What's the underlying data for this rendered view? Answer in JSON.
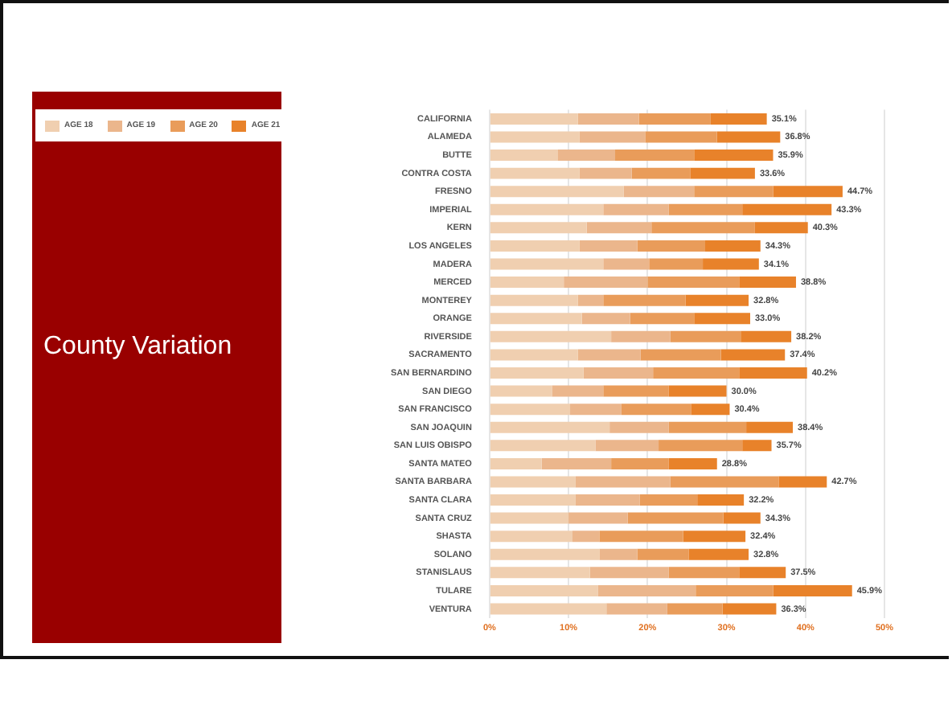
{
  "chart_data": {
    "type": "bar",
    "title": "County Variation",
    "orientation": "horizontal",
    "stacked": true,
    "categories": [
      "CALIFORNIA",
      "ALAMEDA",
      "BUTTE",
      "CONTRA COSTA",
      "FRESNO",
      "IMPERIAL",
      "KERN",
      "LOS ANGELES",
      "MADERA",
      "MERCED",
      "MONTEREY",
      "ORANGE",
      "RIVERSIDE",
      "SACRAMENTO",
      "SAN BERNARDINO",
      "SAN DIEGO",
      "SAN FRANCISCO",
      "SAN JOAQUIN",
      "SAN LUIS OBISPO",
      "SANTA MATEO",
      "SANTA BARBARA",
      "SANTA CLARA",
      "SANTA CRUZ",
      "SHASTA",
      "SOLANO",
      "STANISLAUS",
      "TULARE",
      "VENTURA"
    ],
    "series": [
      {
        "name": "AGE 18",
        "color": "#f0cfb0",
        "values": [
          11.2,
          11.4,
          8.6,
          11.4,
          17.0,
          14.4,
          12.3,
          11.4,
          14.4,
          9.4,
          11.2,
          11.7,
          15.4,
          11.2,
          11.9,
          7.9,
          10.2,
          15.2,
          13.4,
          6.6,
          10.9,
          10.9,
          10.0,
          10.5,
          13.9,
          12.7,
          13.7,
          14.8
        ]
      },
      {
        "name": "AGE 19",
        "color": "#ebb68c",
        "values": [
          7.7,
          8.3,
          7.3,
          6.6,
          8.9,
          8.3,
          8.2,
          7.3,
          5.8,
          10.6,
          3.2,
          6.1,
          7.5,
          7.9,
          8.8,
          6.5,
          6.5,
          7.5,
          8.0,
          8.8,
          12.0,
          8.1,
          7.5,
          3.4,
          4.8,
          10.0,
          12.4,
          7.7
        ]
      },
      {
        "name": "AGE 20",
        "color": "#e99c5a",
        "values": [
          9.1,
          9.1,
          10.0,
          7.4,
          10.0,
          9.3,
          13.1,
          8.6,
          6.8,
          11.6,
          10.4,
          8.1,
          8.9,
          10.2,
          10.9,
          8.3,
          8.8,
          9.8,
          10.6,
          7.3,
          13.7,
          7.3,
          12.1,
          10.6,
          6.5,
          8.9,
          9.8,
          7.0
        ]
      },
      {
        "name": "AGE 21",
        "color": "#e8822a",
        "values": [
          7.1,
          8.0,
          10.0,
          8.2,
          8.8,
          11.3,
          6.7,
          7.0,
          7.1,
          7.2,
          8.0,
          7.1,
          6.4,
          8.1,
          8.6,
          7.3,
          4.9,
          5.9,
          3.7,
          6.1,
          6.1,
          5.9,
          4.7,
          7.9,
          7.6,
          5.9,
          10.0,
          6.8
        ]
      }
    ],
    "totals": [
      "35.1%",
      "36.8%",
      "35.9%",
      "33.6%",
      "44.7%",
      "43.3%",
      "40.3%",
      "34.3%",
      "34.1%",
      "38.8%",
      "32.8%",
      "33.0%",
      "38.2%",
      "37.4%",
      "40.2%",
      "30.0%",
      "30.4%",
      "38.4%",
      "35.7%",
      "28.8%",
      "42.7%",
      "32.2%",
      "34.3%",
      "32.4%",
      "32.8%",
      "37.5%",
      "45.9%",
      "36.3%"
    ],
    "xlim": [
      0,
      50
    ],
    "xticks": [
      {
        "value": 0,
        "label": "0%"
      },
      {
        "value": 10,
        "label": "10%"
      },
      {
        "value": 20,
        "label": "20%"
      },
      {
        "value": 30,
        "label": "30%"
      },
      {
        "value": 40,
        "label": "40%"
      },
      {
        "value": 50,
        "label": "50%"
      }
    ],
    "grid": "x",
    "legend": "top left"
  }
}
